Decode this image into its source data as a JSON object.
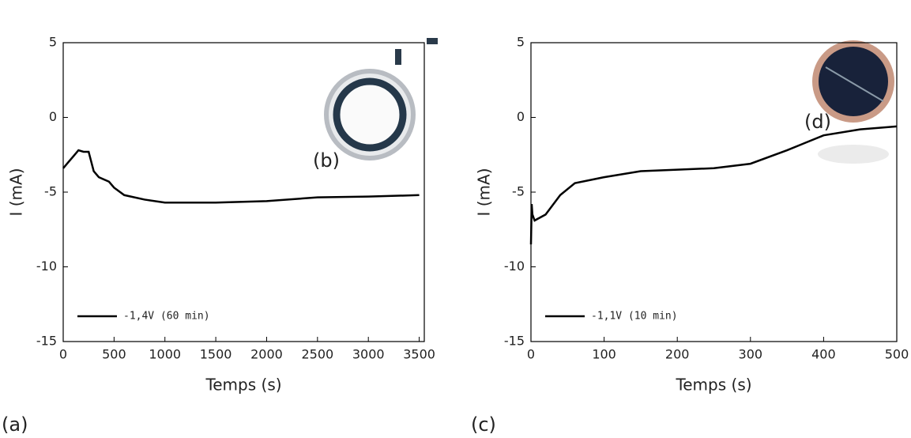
{
  "chart_data": [
    {
      "type": "line",
      "xlabel": "Temps (s)",
      "ylabel": "I (mA)",
      "panel": "(a)",
      "annotation": "(b)",
      "xlim": [
        0,
        3550
      ],
      "xticks": [
        0,
        500,
        1000,
        1500,
        2000,
        2500,
        3000,
        3500
      ],
      "ylim": [
        -15,
        5
      ],
      "yticks": [
        -15,
        -10,
        -5,
        0,
        5
      ],
      "legend": "lower left",
      "x": [
        0,
        50,
        100,
        150,
        200,
        250,
        300,
        350,
        450,
        500,
        600,
        800,
        1000,
        1500,
        2000,
        2500,
        3000,
        3500
      ],
      "series": [
        {
          "name": "-1,4V (60 min)",
          "color": "#000000",
          "values": [
            -3.4,
            -3.0,
            -2.6,
            -2.2,
            -2.3,
            -2.3,
            -3.6,
            -4.0,
            -4.3,
            -4.7,
            -5.2,
            -5.5,
            -5.7,
            -5.7,
            -5.6,
            -5.35,
            -5.3,
            -5.2
          ]
        }
      ]
    },
    {
      "type": "line",
      "xlabel": "Temps (s)",
      "ylabel": "I (mA)",
      "panel": "(c)",
      "annotation": "(d)",
      "xlim": [
        0,
        500
      ],
      "xticks": [
        0,
        100,
        200,
        300,
        400,
        500
      ],
      "ylim": [
        -15,
        5
      ],
      "yticks": [
        -15,
        -10,
        -5,
        0,
        5
      ],
      "legend": "lower left",
      "x": [
        0,
        1,
        2,
        5,
        20,
        40,
        60,
        100,
        150,
        200,
        250,
        300,
        350,
        400,
        450,
        500
      ],
      "series": [
        {
          "name": "-1,1V (10 min)",
          "color": "#000000",
          "values": [
            -8.5,
            -5.8,
            -6.5,
            -6.9,
            -6.5,
            -5.2,
            -4.4,
            -4.0,
            -3.6,
            -3.5,
            -3.4,
            -3.1,
            -2.2,
            -1.2,
            -0.8,
            -0.6
          ]
        }
      ]
    }
  ]
}
